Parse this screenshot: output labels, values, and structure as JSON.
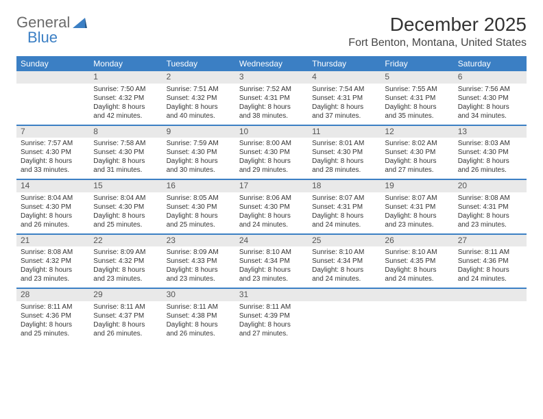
{
  "logo": {
    "text1": "General",
    "text2": "Blue"
  },
  "title": "December 2025",
  "location": "Fort Benton, Montana, United States",
  "weekdays": [
    "Sunday",
    "Monday",
    "Tuesday",
    "Wednesday",
    "Thursday",
    "Friday",
    "Saturday"
  ],
  "style": {
    "header_bg": "#3b7fc4",
    "header_fg": "#ffffff",
    "row_border": "#3b7fc4",
    "daynum_bg": "#e9e9e9",
    "body_font_size": 10,
    "title_font_size": 28,
    "location_font_size": 16
  },
  "weeks": [
    [
      null,
      {
        "n": "1",
        "sr": "Sunrise: 7:50 AM",
        "ss": "Sunset: 4:32 PM",
        "d1": "Daylight: 8 hours",
        "d2": "and 42 minutes."
      },
      {
        "n": "2",
        "sr": "Sunrise: 7:51 AM",
        "ss": "Sunset: 4:32 PM",
        "d1": "Daylight: 8 hours",
        "d2": "and 40 minutes."
      },
      {
        "n": "3",
        "sr": "Sunrise: 7:52 AM",
        "ss": "Sunset: 4:31 PM",
        "d1": "Daylight: 8 hours",
        "d2": "and 38 minutes."
      },
      {
        "n": "4",
        "sr": "Sunrise: 7:54 AM",
        "ss": "Sunset: 4:31 PM",
        "d1": "Daylight: 8 hours",
        "d2": "and 37 minutes."
      },
      {
        "n": "5",
        "sr": "Sunrise: 7:55 AM",
        "ss": "Sunset: 4:31 PM",
        "d1": "Daylight: 8 hours",
        "d2": "and 35 minutes."
      },
      {
        "n": "6",
        "sr": "Sunrise: 7:56 AM",
        "ss": "Sunset: 4:30 PM",
        "d1": "Daylight: 8 hours",
        "d2": "and 34 minutes."
      }
    ],
    [
      {
        "n": "7",
        "sr": "Sunrise: 7:57 AM",
        "ss": "Sunset: 4:30 PM",
        "d1": "Daylight: 8 hours",
        "d2": "and 33 minutes."
      },
      {
        "n": "8",
        "sr": "Sunrise: 7:58 AM",
        "ss": "Sunset: 4:30 PM",
        "d1": "Daylight: 8 hours",
        "d2": "and 31 minutes."
      },
      {
        "n": "9",
        "sr": "Sunrise: 7:59 AM",
        "ss": "Sunset: 4:30 PM",
        "d1": "Daylight: 8 hours",
        "d2": "and 30 minutes."
      },
      {
        "n": "10",
        "sr": "Sunrise: 8:00 AM",
        "ss": "Sunset: 4:30 PM",
        "d1": "Daylight: 8 hours",
        "d2": "and 29 minutes."
      },
      {
        "n": "11",
        "sr": "Sunrise: 8:01 AM",
        "ss": "Sunset: 4:30 PM",
        "d1": "Daylight: 8 hours",
        "d2": "and 28 minutes."
      },
      {
        "n": "12",
        "sr": "Sunrise: 8:02 AM",
        "ss": "Sunset: 4:30 PM",
        "d1": "Daylight: 8 hours",
        "d2": "and 27 minutes."
      },
      {
        "n": "13",
        "sr": "Sunrise: 8:03 AM",
        "ss": "Sunset: 4:30 PM",
        "d1": "Daylight: 8 hours",
        "d2": "and 26 minutes."
      }
    ],
    [
      {
        "n": "14",
        "sr": "Sunrise: 8:04 AM",
        "ss": "Sunset: 4:30 PM",
        "d1": "Daylight: 8 hours",
        "d2": "and 26 minutes."
      },
      {
        "n": "15",
        "sr": "Sunrise: 8:04 AM",
        "ss": "Sunset: 4:30 PM",
        "d1": "Daylight: 8 hours",
        "d2": "and 25 minutes."
      },
      {
        "n": "16",
        "sr": "Sunrise: 8:05 AM",
        "ss": "Sunset: 4:30 PM",
        "d1": "Daylight: 8 hours",
        "d2": "and 25 minutes."
      },
      {
        "n": "17",
        "sr": "Sunrise: 8:06 AM",
        "ss": "Sunset: 4:30 PM",
        "d1": "Daylight: 8 hours",
        "d2": "and 24 minutes."
      },
      {
        "n": "18",
        "sr": "Sunrise: 8:07 AM",
        "ss": "Sunset: 4:31 PM",
        "d1": "Daylight: 8 hours",
        "d2": "and 24 minutes."
      },
      {
        "n": "19",
        "sr": "Sunrise: 8:07 AM",
        "ss": "Sunset: 4:31 PM",
        "d1": "Daylight: 8 hours",
        "d2": "and 23 minutes."
      },
      {
        "n": "20",
        "sr": "Sunrise: 8:08 AM",
        "ss": "Sunset: 4:31 PM",
        "d1": "Daylight: 8 hours",
        "d2": "and 23 minutes."
      }
    ],
    [
      {
        "n": "21",
        "sr": "Sunrise: 8:08 AM",
        "ss": "Sunset: 4:32 PM",
        "d1": "Daylight: 8 hours",
        "d2": "and 23 minutes."
      },
      {
        "n": "22",
        "sr": "Sunrise: 8:09 AM",
        "ss": "Sunset: 4:32 PM",
        "d1": "Daylight: 8 hours",
        "d2": "and 23 minutes."
      },
      {
        "n": "23",
        "sr": "Sunrise: 8:09 AM",
        "ss": "Sunset: 4:33 PM",
        "d1": "Daylight: 8 hours",
        "d2": "and 23 minutes."
      },
      {
        "n": "24",
        "sr": "Sunrise: 8:10 AM",
        "ss": "Sunset: 4:34 PM",
        "d1": "Daylight: 8 hours",
        "d2": "and 23 minutes."
      },
      {
        "n": "25",
        "sr": "Sunrise: 8:10 AM",
        "ss": "Sunset: 4:34 PM",
        "d1": "Daylight: 8 hours",
        "d2": "and 24 minutes."
      },
      {
        "n": "26",
        "sr": "Sunrise: 8:10 AM",
        "ss": "Sunset: 4:35 PM",
        "d1": "Daylight: 8 hours",
        "d2": "and 24 minutes."
      },
      {
        "n": "27",
        "sr": "Sunrise: 8:11 AM",
        "ss": "Sunset: 4:36 PM",
        "d1": "Daylight: 8 hours",
        "d2": "and 24 minutes."
      }
    ],
    [
      {
        "n": "28",
        "sr": "Sunrise: 8:11 AM",
        "ss": "Sunset: 4:36 PM",
        "d1": "Daylight: 8 hours",
        "d2": "and 25 minutes."
      },
      {
        "n": "29",
        "sr": "Sunrise: 8:11 AM",
        "ss": "Sunset: 4:37 PM",
        "d1": "Daylight: 8 hours",
        "d2": "and 26 minutes."
      },
      {
        "n": "30",
        "sr": "Sunrise: 8:11 AM",
        "ss": "Sunset: 4:38 PM",
        "d1": "Daylight: 8 hours",
        "d2": "and 26 minutes."
      },
      {
        "n": "31",
        "sr": "Sunrise: 8:11 AM",
        "ss": "Sunset: 4:39 PM",
        "d1": "Daylight: 8 hours",
        "d2": "and 27 minutes."
      },
      null,
      null,
      null
    ]
  ]
}
